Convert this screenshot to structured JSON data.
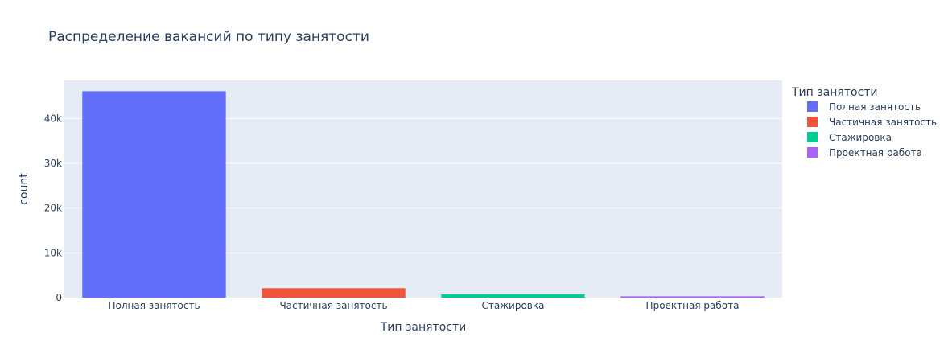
{
  "chart_data": {
    "type": "bar",
    "title": "Распределение вакансий по типу занятости",
    "xlabel": "Тип занятости",
    "ylabel": "count",
    "categories": [
      "Полная занятость",
      "Частичная занятость",
      "Стажировка",
      "Проектная работа"
    ],
    "series": [
      {
        "name": "Полная занятость",
        "category": "Полная занятость",
        "value": 46100,
        "color": "#636efa"
      },
      {
        "name": "Частичная занятость",
        "category": "Частичная занятость",
        "value": 2100,
        "color": "#ef553b"
      },
      {
        "name": "Стажировка",
        "category": "Стажировка",
        "value": 750,
        "color": "#00cc96"
      },
      {
        "name": "Проектная работа",
        "category": "Проектная работа",
        "value": 300,
        "color": "#ab63fa"
      }
    ],
    "ylim": [
      0,
      48500
    ],
    "yticks": [
      0,
      10000,
      20000,
      30000,
      40000
    ],
    "ytick_labels": [
      "0",
      "10k",
      "20k",
      "30k",
      "40k"
    ],
    "grid": true,
    "legend_title": "Тип занятости",
    "legend_position": "right",
    "plot_background": "#e5ecf6"
  }
}
